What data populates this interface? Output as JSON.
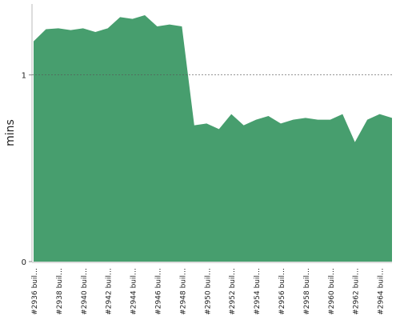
{
  "chart_data": {
    "type": "area",
    "ylabel": "mins",
    "color": "#479e6e",
    "categories": [
      "#2936 buil…",
      null,
      "#2938 buil…",
      null,
      "#2940 buil…",
      null,
      "#2942 buil…",
      null,
      "#2944 buil…",
      null,
      "#2946 buil…",
      null,
      "#2948 buil…",
      null,
      "#2950 buil…",
      null,
      "#2952 buil…",
      null,
      "#2954 buil…",
      null,
      "#2956 buil…",
      null,
      "#2958 buil…",
      null,
      "#2960 buil…",
      null,
      "#2962 buil…",
      null,
      "#2964 buil…",
      null
    ],
    "values": [
      1.18,
      1.245,
      1.25,
      1.24,
      1.25,
      1.23,
      1.25,
      1.31,
      1.3,
      1.32,
      1.26,
      1.27,
      1.26,
      0.73,
      0.74,
      0.71,
      0.79,
      0.73,
      0.76,
      0.78,
      0.74,
      0.76,
      0.77,
      0.76,
      0.76,
      0.79,
      0.64,
      0.76,
      0.79,
      0.77
    ],
    "ylim": [
      0,
      1.38
    ],
    "yticks": [
      0,
      1
    ],
    "grid": true
  }
}
